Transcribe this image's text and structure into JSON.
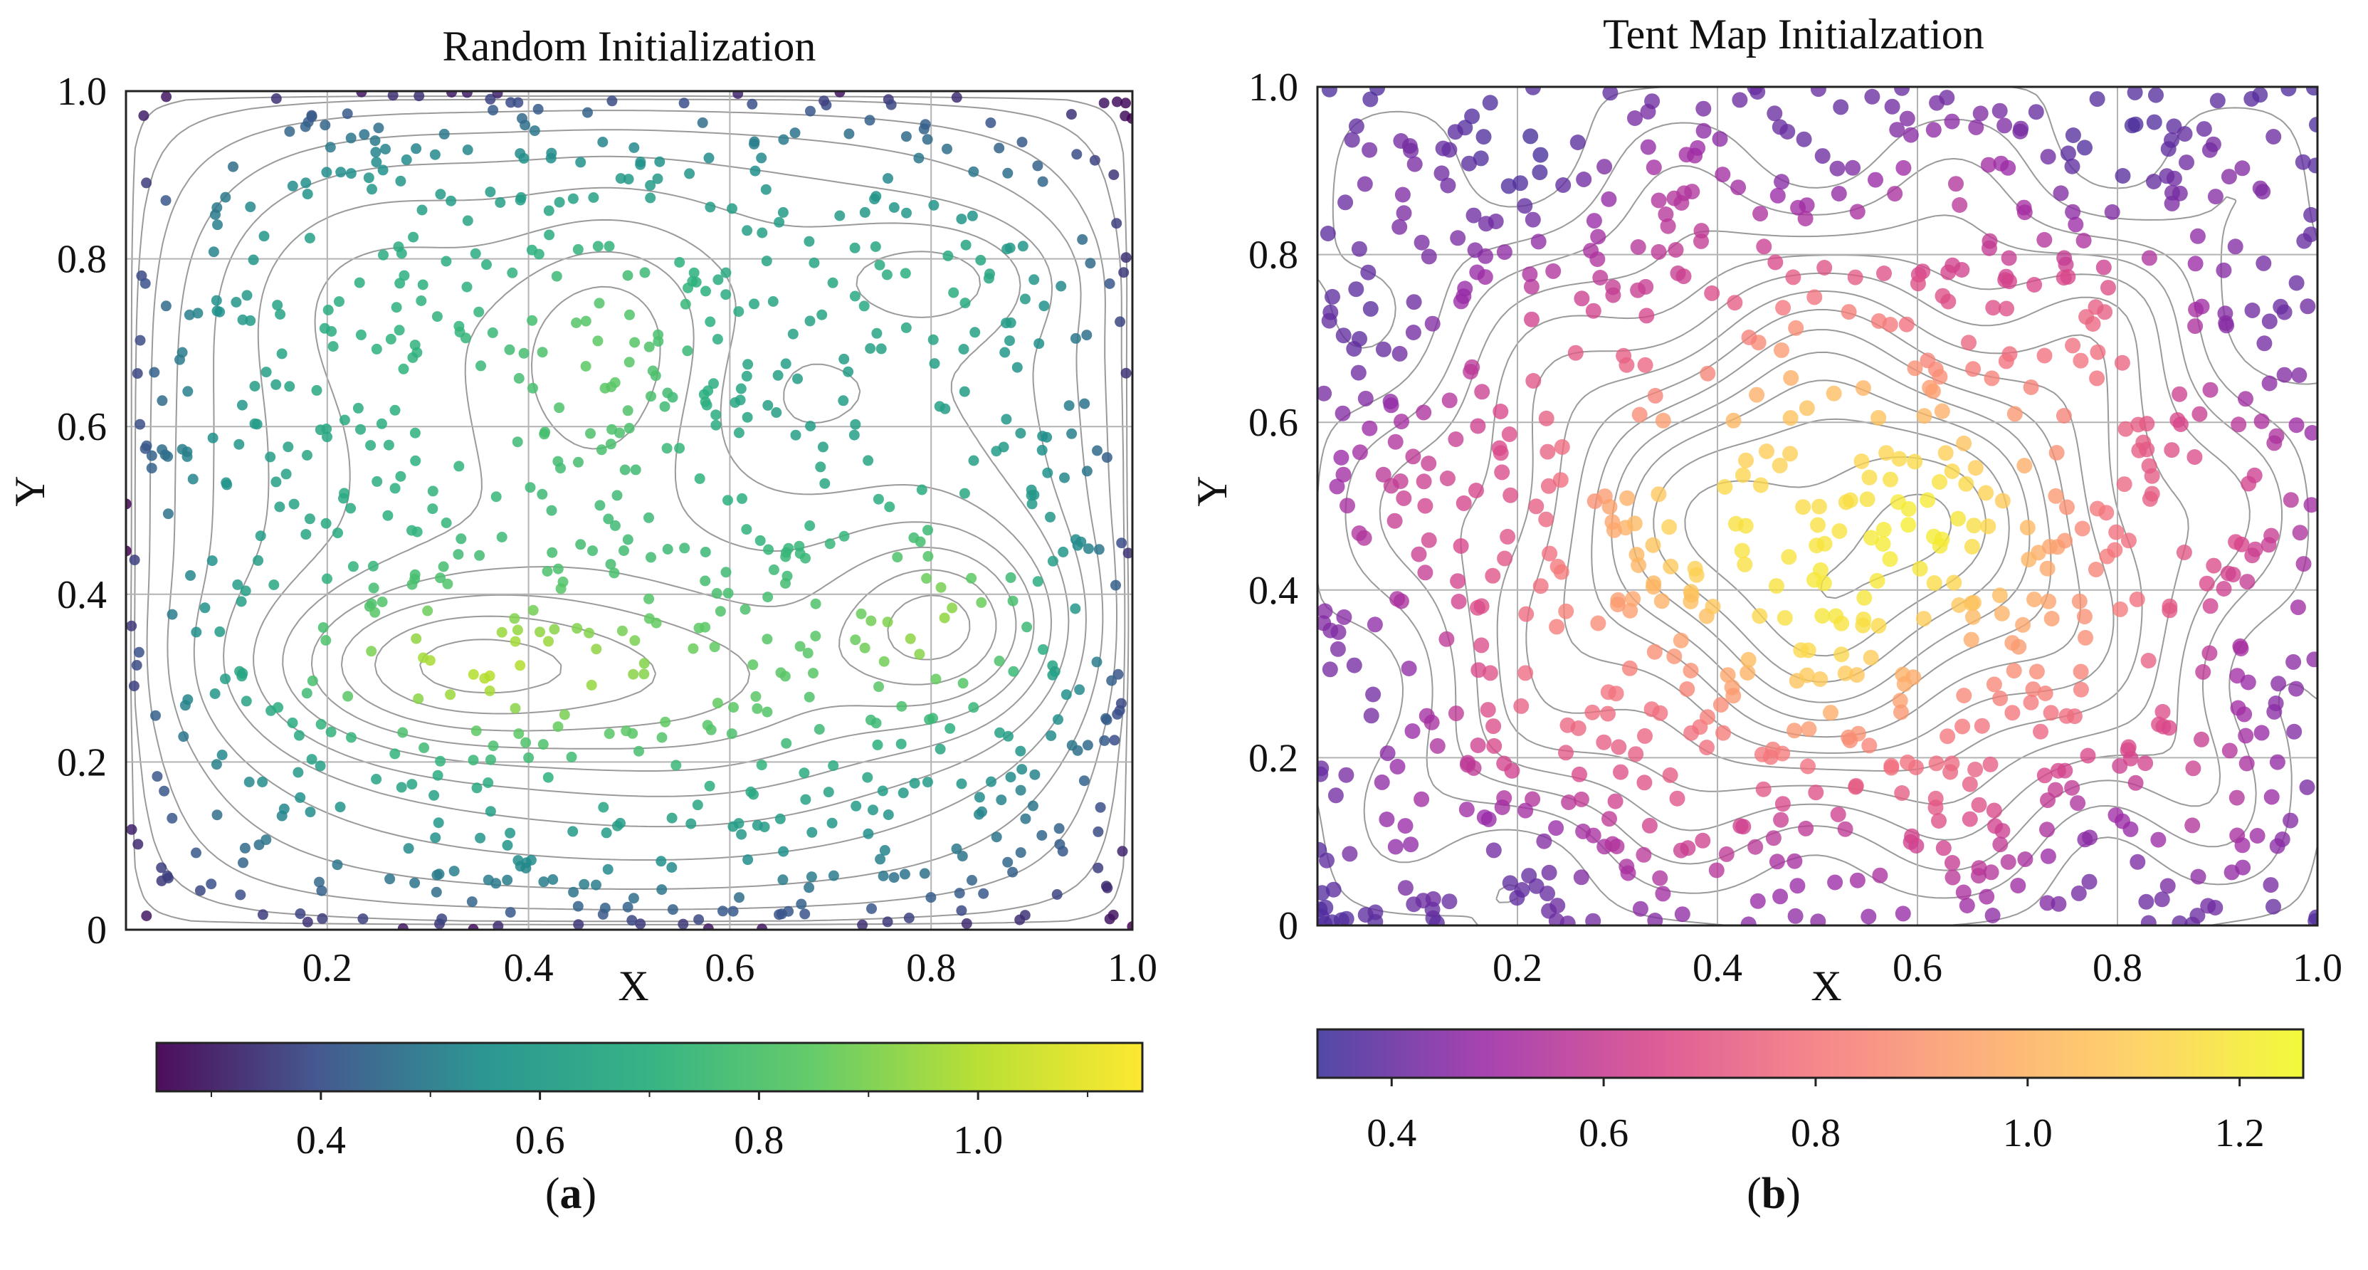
{
  "figure": {
    "panels": [
      {
        "label_open": "(",
        "label_letter": "a",
        "label_close": ")"
      },
      {
        "label_open": "(",
        "label_letter": "b",
        "label_close": ")"
      }
    ]
  },
  "chart_data": [
    {
      "type": "scatter",
      "title": "Random Initialization",
      "xlabel": "X",
      "ylabel": "Y",
      "xlim": [
        0,
        1
      ],
      "ylim": [
        0,
        1
      ],
      "xticks": [
        0.2,
        0.4,
        0.6,
        0.8,
        1.0
      ],
      "xtick_labels": [
        "0.2",
        "0.4",
        "0.6",
        "0.8",
        "1.0"
      ],
      "yticks": [
        0,
        0.2,
        0.4,
        0.6,
        0.8,
        1.0
      ],
      "ytick_labels": [
        "0",
        "0.2",
        "0.4",
        "0.6",
        "0.8",
        "1.0"
      ],
      "grid": true,
      "contours": true,
      "point_count": 900,
      "distribution": "uniform random",
      "value_field": "random-init",
      "colormap": "viridis",
      "colormap_stops": [
        "#440154",
        "#3b528b",
        "#21918c",
        "#2cb07f",
        "#5ec962",
        "#b5de2b",
        "#fde725"
      ],
      "point_alpha": 0.85,
      "colorbar": {
        "range": [
          0.25,
          1.15
        ],
        "ticks": [
          0.4,
          0.6,
          0.8,
          1.0
        ],
        "tick_labels": [
          "0.4",
          "0.6",
          "0.8",
          "1.0"
        ],
        "minor_ticks": [
          0.3,
          0.5,
          0.7,
          0.9,
          1.1
        ]
      }
    },
    {
      "type": "scatter",
      "title": "Tent Map Initialzation",
      "xlabel": "X",
      "ylabel": "Y",
      "xlim": [
        0,
        1
      ],
      "ylim": [
        0,
        1
      ],
      "xticks": [
        0.2,
        0.4,
        0.6,
        0.8,
        1.0
      ],
      "xtick_labels": [
        "0.2",
        "0.4",
        "0.6",
        "0.8",
        "1.0"
      ],
      "yticks": [
        0,
        0.2,
        0.4,
        0.6,
        0.8,
        1.0
      ],
      "ytick_labels": [
        "0",
        "0.2",
        "0.4",
        "0.6",
        "0.8",
        "1.0"
      ],
      "grid": true,
      "contours": true,
      "point_count": 900,
      "distribution": "tent map chaotic sequence",
      "value_field": "tent-init",
      "colormap": "plasma",
      "colormap_stops": [
        "#3a2f9a",
        "#9a2aa6",
        "#d6448a",
        "#f4757c",
        "#fca56b",
        "#fece55",
        "#f0f921"
      ],
      "point_alpha": 0.78,
      "colorbar": {
        "range": [
          0.33,
          1.26
        ],
        "ticks": [
          0.4,
          0.6,
          0.8,
          1.0,
          1.2
        ],
        "tick_labels": [
          "0.4",
          "0.6",
          "0.8",
          "1.0",
          "1.2"
        ],
        "minor_ticks": []
      }
    }
  ]
}
